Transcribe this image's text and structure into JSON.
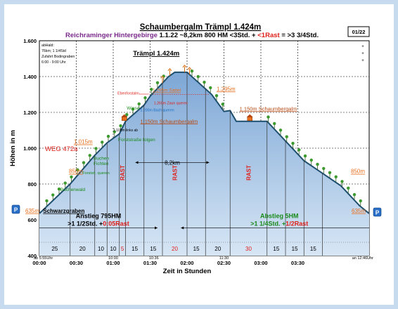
{
  "chart_data": {
    "type": "area",
    "title": "Schaumbergalm Trämpl 1.424m",
    "subtitle": {
      "region": "Reichraminger Hintergebirge",
      "stats": "1.1.22  ~8,2km  800 HM  <3Std. +",
      "rast": "<1Rast",
      "total": "= >3 3/4Std."
    },
    "badge": "01/22",
    "peak_title": "Trämpl 1.424m",
    "info": [
      "abHald:",
      "76km; 1 1/4Std",
      "Zufahrt Bodingraben",
      "6:00 - 9:00 Uhr"
    ],
    "xlabel": "Zeit in Stunden",
    "ylabel": "Höhen in m",
    "ylim": [
      400,
      1600
    ],
    "xlim": [
      0,
      268
    ],
    "grid": true,
    "x_ticks": [
      {
        "x": 0,
        "label": "00:00"
      },
      {
        "x": 30,
        "label": "00:30"
      },
      {
        "x": 60,
        "label": "01:00"
      },
      {
        "x": 90,
        "label": "01:30"
      },
      {
        "x": 120,
        "label": "02:00"
      },
      {
        "x": 150,
        "label": "02:30"
      },
      {
        "x": 180,
        "label": "03:00"
      },
      {
        "x": 210,
        "label": "03:30"
      }
    ],
    "y_ticks": [
      {
        "v": 400,
        "label": "400"
      },
      {
        "v": 600,
        "label": "600"
      },
      {
        "v": 800,
        "label": "800"
      },
      {
        "v": 1000,
        "label": "1.000"
      },
      {
        "v": 1200,
        "label": "1.200"
      },
      {
        "v": 1400,
        "label": "1.400"
      },
      {
        "v": 1600,
        "label": "1.600"
      }
    ],
    "series": [
      {
        "x": [
          0,
          25,
          45,
          55,
          65,
          70,
          85,
          90,
          105,
          110,
          120,
          140,
          150,
          155,
          160,
          185,
          215,
          230,
          245,
          260,
          268
        ],
        "y": [
          635,
          800,
          960,
          1030,
          1080,
          1150,
          1240,
          1290,
          1400,
          1424,
          1424,
          1300,
          1205,
          1210,
          1150,
          1150,
          930,
          860,
          790,
          680,
          635
        ]
      }
    ],
    "segments": [
      {
        "x1": 0,
        "x2": 25,
        "label": "25",
        "red": false
      },
      {
        "x1": 25,
        "x2": 45,
        "label": "20",
        "red": false
      },
      {
        "x1": 45,
        "x2": 55,
        "label": "10",
        "red": false
      },
      {
        "x1": 55,
        "x2": 65,
        "label": "10",
        "red": false
      },
      {
        "x1": 65,
        "x2": 70,
        "label": "5",
        "red": true
      },
      {
        "x1": 70,
        "x2": 85,
        "label": "15",
        "red": false
      },
      {
        "x1": 85,
        "x2": 100,
        "label": "15",
        "red": false
      },
      {
        "x1": 100,
        "x2": 120,
        "label": "20",
        "red": true
      },
      {
        "x1": 120,
        "x2": 135,
        "label": "15",
        "red": false
      },
      {
        "x1": 135,
        "x2": 155,
        "label": "20",
        "red": false
      },
      {
        "x1": 155,
        "x2": 185,
        "label": "30",
        "red": true
      },
      {
        "x1": 185,
        "x2": 200,
        "label": "15",
        "red": false
      },
      {
        "x1": 200,
        "x2": 215,
        "label": "15",
        "red": false
      },
      {
        "x1": 215,
        "x2": 230,
        "label": "15",
        "red": false
      }
    ],
    "rast": [
      {
        "x1": 65,
        "x2": 70,
        "label": "RAST"
      },
      {
        "x1": 100,
        "x2": 120,
        "label": "RAST"
      },
      {
        "x1": 155,
        "x2": 185,
        "label": "RAST"
      }
    ],
    "time_labels": [
      {
        "x": 0,
        "label": "ab 5:55Uhr"
      },
      {
        "x": 60,
        "label": "10:00"
      },
      {
        "x": 93,
        "label": "10:36"
      },
      {
        "x": 150,
        "label": "11:30"
      },
      {
        "x": 268,
        "label": "an 12:46Uhr"
      }
    ],
    "anstieg": {
      "line1": "Anstieg 795HM",
      "line2a": ">1 1/2Std. +",
      "line2b": "0:05Rast"
    },
    "abstieg": {
      "line1": "Abstieg 5HM",
      "line2a": ">1 1/4Std. +",
      "line2b": "1/2Rast"
    },
    "distance": "8,2km",
    "weg": "WEG 472a",
    "parking": "P",
    "labels": {
      "schwarzgraben": "Schwarzgraben",
      "buchenwald": "Buchenwald",
      "buchen_fichten": "Buchen\nFichten",
      "forststr_queren": "Forststr. queren",
      "forststrasse_folgen": "Forststraße folgen",
      "links_ab": "1.100m links ab",
      "wiese": "Wiese",
      "schaumbergalm_left": "1.150m Schaumbergalm",
      "schaumbergalm_right": "1.150m Schaumbergalm",
      "ebenforstalm": "Ebenforstalm",
      "sattel": "1.295m Sattel",
      "zaun": "1.260m Zaun queren",
      "bach": "1.200m Bach queren",
      "h_1295_right": "1.295m",
      "h_1015": "1.015m",
      "h_850": "850m",
      "h_850_right": "850m",
      "h_635_left": "635m",
      "h_635_right": "635m",
      "plus": "+"
    }
  }
}
